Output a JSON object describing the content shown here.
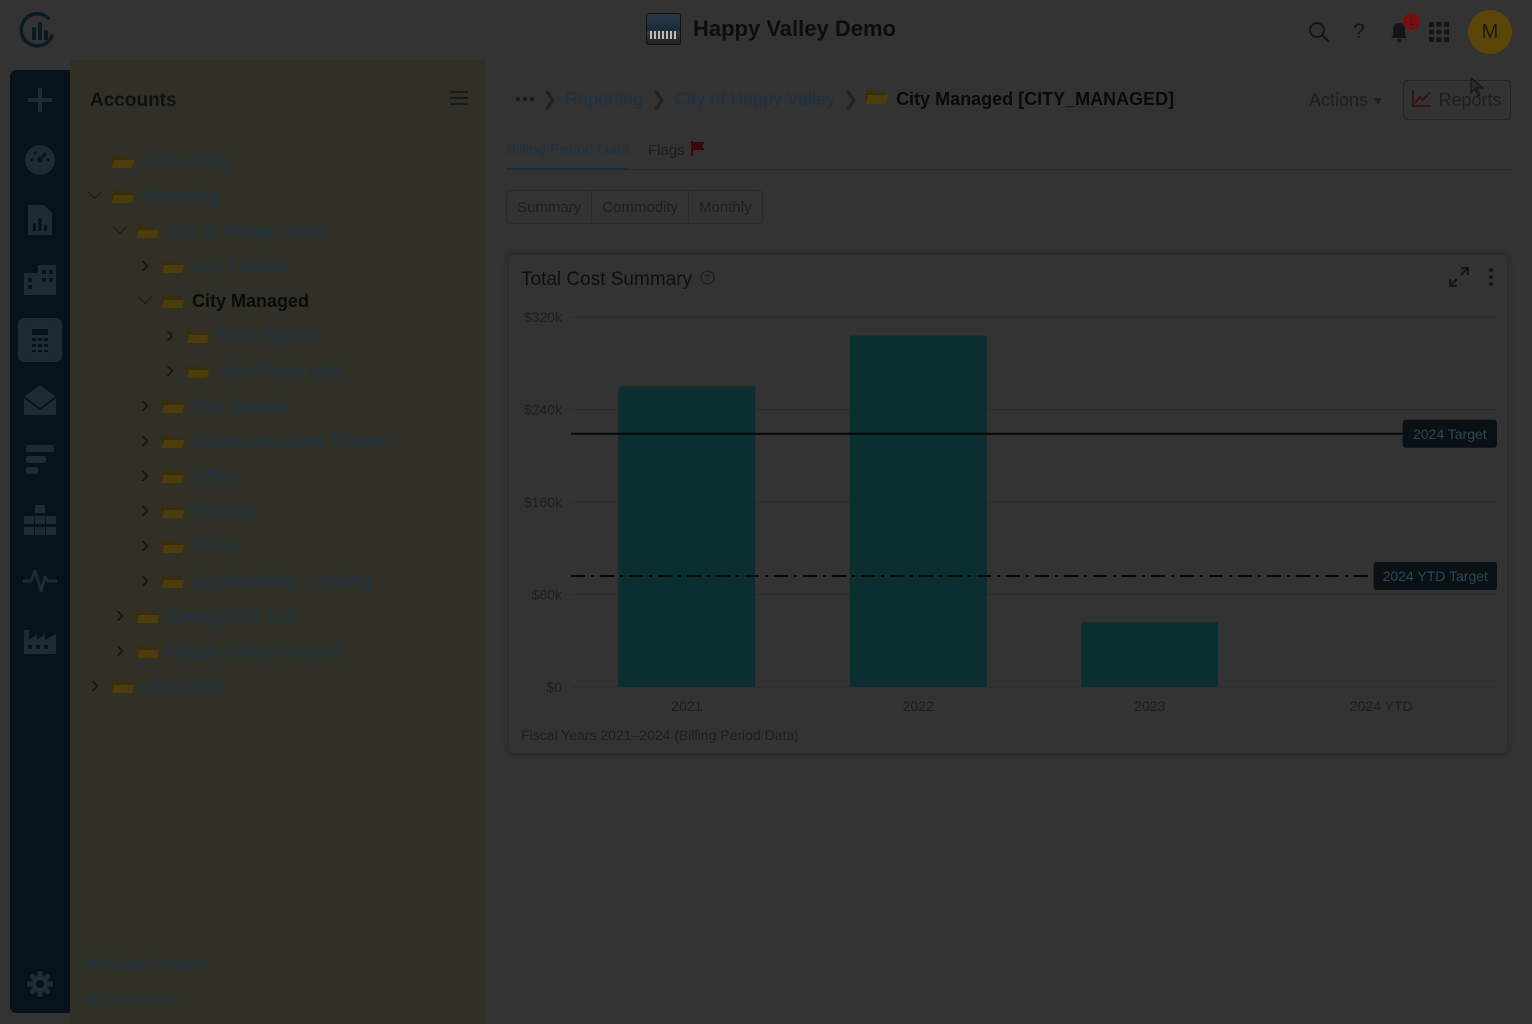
{
  "app": {
    "title": "Happy Valley Demo",
    "avatar_initial": "M",
    "notification_count": "1"
  },
  "colors": {
    "bar": "#0b2e30",
    "background": "#333334",
    "target_line": "#070707"
  },
  "rail": {
    "items": [
      "plus-icon",
      "dashboard-icon",
      "chart-icon",
      "buildings-icon",
      "calculator-icon",
      "mail-icon",
      "tasks-icon",
      "org-chart-icon",
      "activity-icon",
      "factory-icon"
    ],
    "settings": "gear-icon"
  },
  "tree": {
    "title": "Accounts",
    "nodes": [
      {
        "label": "Accounting",
        "depth": 0,
        "expander": "none",
        "style": "link"
      },
      {
        "label": "Reporting",
        "depth": 0,
        "expander": "open",
        "style": "link"
      },
      {
        "label": "City of Happy Valley",
        "depth": 1,
        "expander": "open",
        "style": "link"
      },
      {
        "label": "City Leased",
        "depth": 2,
        "expander": "closed",
        "style": "link"
      },
      {
        "label": "City Managed",
        "depth": 2,
        "expander": "open",
        "style": "bold"
      },
      {
        "label": "Train Station",
        "depth": 3,
        "expander": "closed",
        "style": "link"
      },
      {
        "label": "Twin Pines Mall",
        "depth": 3,
        "expander": "closed",
        "style": "link"
      },
      {
        "label": "City Owned",
        "depth": 2,
        "expander": "closed",
        "style": "link"
      },
      {
        "label": "Communications Towers",
        "depth": 2,
        "expander": "closed",
        "style": "link"
      },
      {
        "label": "Other",
        "depth": 2,
        "expander": "closed",
        "style": "link"
      },
      {
        "label": "Parking",
        "depth": 2,
        "expander": "closed",
        "style": "link"
      },
      {
        "label": "Police",
        "depth": 2,
        "expander": "closed",
        "style": "link"
      },
      {
        "label": "Sustainability Tracking",
        "depth": 2,
        "expander": "closed",
        "style": "link"
      },
      {
        "label": "EnergyCAP, LLC",
        "depth": 1,
        "expander": "closed",
        "style": "link"
      },
      {
        "label": "Happy Valley Campus",
        "depth": 1,
        "expander": "closed",
        "style": "link"
      },
      {
        "label": "zExcluded",
        "depth": 0,
        "expander": "closed",
        "style": "link"
      }
    ],
    "footer": {
      "cost_centers": "All Cost Centers",
      "accounts": "All Accounts"
    }
  },
  "breadcrumb": {
    "items": [
      "Reporting",
      "City of Happy Valley"
    ],
    "current": "City Managed [CITY_MANAGED]"
  },
  "toolbar": {
    "actions_label": "Actions",
    "reports_label": "Reports"
  },
  "tabs": {
    "billing": "Billing Period Data",
    "flags": "Flags"
  },
  "views": [
    "Summary",
    "Commodity",
    "Monthly"
  ],
  "card": {
    "title": "Total Cost Summary",
    "caption": "Fiscal Years 2021–2024 (Billing Period Data)"
  },
  "chart_data": {
    "type": "bar",
    "title": "Total Cost Summary",
    "categories": [
      "2021",
      "2022",
      "2023",
      "2024 YTD"
    ],
    "values": [
      260000,
      304000,
      56000,
      0
    ],
    "ylim": [
      0,
      320000
    ],
    "yticks": [
      0,
      80000,
      160000,
      240000,
      320000
    ],
    "ytick_labels": [
      "$0",
      "$80k",
      "$160k",
      "$240k",
      "$320k"
    ],
    "reference_lines": [
      {
        "label": "2024 Target",
        "value": 219000,
        "style": "solid"
      },
      {
        "label": "2024 YTD Target",
        "value": 96000,
        "style": "dash-dot"
      }
    ],
    "grid": true,
    "legend": "none"
  }
}
